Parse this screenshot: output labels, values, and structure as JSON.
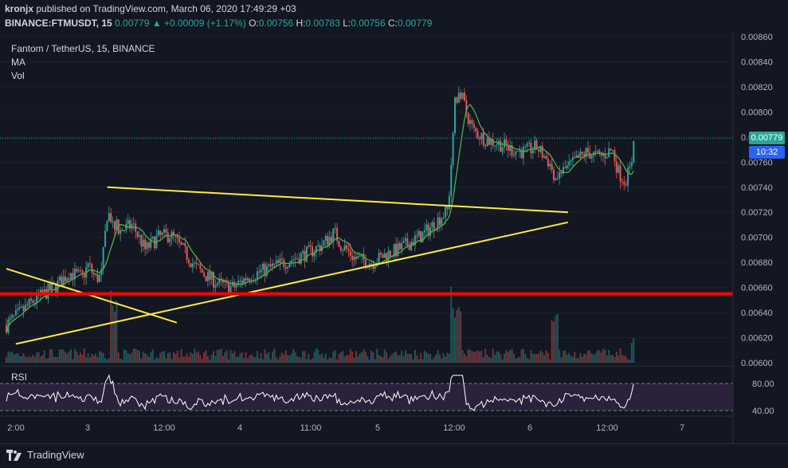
{
  "header": {
    "publisher": "kronjx",
    "published_text": "published on TradingView.com, March 06, 2020 17:49:29 +03",
    "symbol": "BINANCE:FTMUSDT, 15",
    "last": "0.00779",
    "change": "+0.00009 (+1.17%)",
    "o_label": "O:",
    "o": "0.00756",
    "h_label": "H:",
    "h": "0.00783",
    "l_label": "L:",
    "l": "0.00756",
    "c_label": "C:",
    "c": "0.00779"
  },
  "legend": {
    "title": "Fantom / TetherUS, 15, BINANCE",
    "ma": "MA",
    "vol": "Vol"
  },
  "rsi_label": "RSI",
  "current_price_tag": "0.00779",
  "countdown_tag": "10:32",
  "footer": {
    "brand": "TradingView"
  },
  "colors": {
    "background": "#131722",
    "up": "#26a69a",
    "down": "#ef5350",
    "ma": "#4caf50",
    "trendline": "#ffeb3b",
    "support": "#ff0000",
    "rsi_line": "#ffffff",
    "rsi_band": "#3b2a4d",
    "price_tag": "#26a69a",
    "countdown_tag": "#2962ff"
  },
  "chart_data": {
    "type": "candlestick",
    "y_ticks": [
      "0.00860",
      "0.00840",
      "0.00820",
      "0.00800",
      "0.00780",
      "0.00760",
      "0.00740",
      "0.00720",
      "0.00700",
      "0.00680",
      "0.00660",
      "0.00640",
      "0.00620",
      "0.00600"
    ],
    "ylim": [
      0.006,
      0.0086
    ],
    "x_ticks": [
      "2:00",
      "3",
      "12:00",
      "4",
      "11:00",
      "5",
      "12:00",
      "6",
      "12:00",
      "7"
    ],
    "rsi_ticks": [
      "80.00",
      "40.00"
    ],
    "price_path": [
      [
        0,
        0.0063
      ],
      [
        4,
        0.00648
      ],
      [
        8,
        0.00662
      ],
      [
        10,
        0.00672
      ],
      [
        12,
        0.00668
      ],
      [
        13,
        0.00678
      ],
      [
        14,
        0.00668
      ],
      [
        15,
        0.00668
      ],
      [
        16,
        0.0072
      ],
      [
        18,
        0.00705
      ],
      [
        20,
        0.0071
      ],
      [
        22,
        0.0069
      ],
      [
        24,
        0.007
      ],
      [
        26,
        0.00702
      ],
      [
        28,
        0.0069
      ],
      [
        30,
        0.00676
      ],
      [
        32,
        0.00668
      ],
      [
        34,
        0.00662
      ],
      [
        36,
        0.0066
      ],
      [
        38,
        0.00668
      ],
      [
        40,
        0.00672
      ],
      [
        42,
        0.00676
      ],
      [
        44,
        0.0068
      ],
      [
        46,
        0.00684
      ],
      [
        48,
        0.00688
      ],
      [
        50,
        0.00694
      ],
      [
        52,
        0.00704
      ],
      [
        53,
        0.00694
      ],
      [
        54,
        0.0069
      ],
      [
        55,
        0.00684
      ],
      [
        56,
        0.00682
      ],
      [
        58,
        0.0068
      ],
      [
        60,
        0.00686
      ],
      [
        62,
        0.0069
      ],
      [
        64,
        0.00696
      ],
      [
        66,
        0.00702
      ],
      [
        68,
        0.00712
      ],
      [
        70,
        0.00722
      ],
      [
        70.5,
        0.0076
      ],
      [
        71,
        0.0081
      ],
      [
        72,
        0.00815
      ],
      [
        73,
        0.00798
      ],
      [
        74,
        0.00785
      ],
      [
        76,
        0.00778
      ],
      [
        78,
        0.00775
      ],
      [
        80,
        0.0077
      ],
      [
        82,
        0.00768
      ],
      [
        84,
        0.00772
      ],
      [
        86,
        0.0076
      ],
      [
        87,
        0.00748
      ],
      [
        88,
        0.00752
      ],
      [
        90,
        0.0076
      ],
      [
        92,
        0.00768
      ],
      [
        94,
        0.00764
      ],
      [
        96,
        0.0077
      ],
      [
        97,
        0.00752
      ],
      [
        98,
        0.00745
      ],
      [
        99,
        0.00756
      ],
      [
        99.4,
        0.00779
      ]
    ],
    "volume_spikes": [
      [
        17,
        0.9
      ],
      [
        71,
        1.0
      ],
      [
        71.5,
        0.7
      ],
      [
        87,
        0.6
      ],
      [
        99.4,
        0.25
      ]
    ],
    "trendlines": [
      {
        "name": "upper-resistance",
        "from": [
          16,
          0.0074
        ],
        "to": [
          89,
          0.0072
        ]
      },
      {
        "name": "rising-support",
        "from": [
          1.5,
          0.00615
        ],
        "to": [
          89,
          0.00712
        ]
      },
      {
        "name": "falling-line",
        "from": [
          0,
          0.00675
        ],
        "to": [
          27,
          0.00632
        ]
      }
    ],
    "support_level": 0.00655,
    "current_price": 0.00779
  }
}
